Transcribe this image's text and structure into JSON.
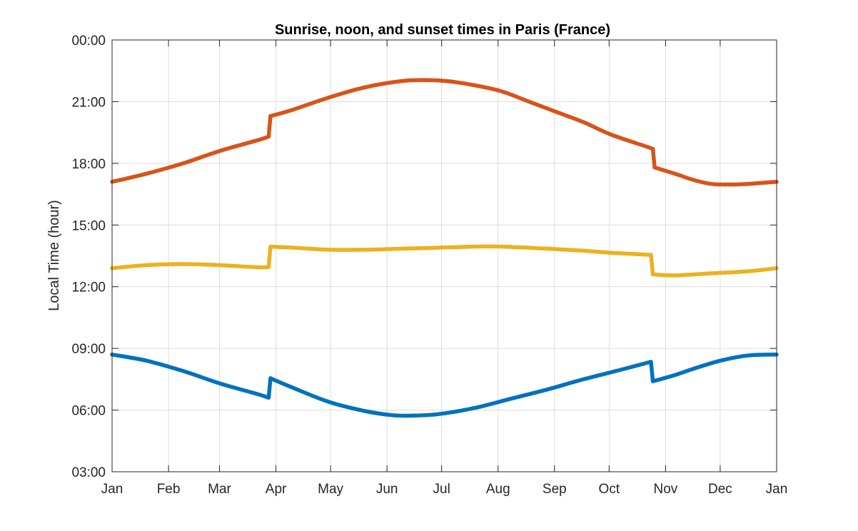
{
  "chart_data": {
    "type": "line",
    "title": "Sunrise, noon, and sunset times in Paris (France)",
    "xlabel": "",
    "ylabel": "Local Time (hour)",
    "x_unit": "day of year",
    "xlim": [
      1,
      366
    ],
    "ylim": [
      3,
      24
    ],
    "grid": true,
    "x_ticks": [
      {
        "value": 1,
        "label": "Jan"
      },
      {
        "value": 32,
        "label": "Feb"
      },
      {
        "value": 60,
        "label": "Mar"
      },
      {
        "value": 91,
        "label": "Apr"
      },
      {
        "value": 121,
        "label": "May"
      },
      {
        "value": 152,
        "label": "Jun"
      },
      {
        "value": 182,
        "label": "Jul"
      },
      {
        "value": 213,
        "label": "Aug"
      },
      {
        "value": 244,
        "label": "Sep"
      },
      {
        "value": 274,
        "label": "Oct"
      },
      {
        "value": 305,
        "label": "Nov"
      },
      {
        "value": 335,
        "label": "Dec"
      },
      {
        "value": 366,
        "label": "Jan"
      }
    ],
    "y_ticks": [
      {
        "value": 3,
        "label": "03:00"
      },
      {
        "value": 6,
        "label": "06:00"
      },
      {
        "value": 9,
        "label": "09:00"
      },
      {
        "value": 12,
        "label": "12:00"
      },
      {
        "value": 15,
        "label": "15:00"
      },
      {
        "value": 18,
        "label": "18:00"
      },
      {
        "value": 21,
        "label": "21:00"
      },
      {
        "value": 24,
        "label": "00:00"
      }
    ],
    "series": [
      {
        "color": "#D95319",
        "points": [
          [
            1,
            17.1
          ],
          [
            20,
            17.5
          ],
          [
            40,
            18.0
          ],
          [
            60,
            18.6
          ],
          [
            80,
            19.1
          ],
          [
            87,
            19.3
          ],
          [
            88,
            20.3
          ],
          [
            100,
            20.6
          ],
          [
            120,
            21.2
          ],
          [
            140,
            21.7
          ],
          [
            160,
            22.0
          ],
          [
            175,
            22.05
          ],
          [
            185,
            22.0
          ],
          [
            200,
            21.8
          ],
          [
            215,
            21.5
          ],
          [
            230,
            21.0
          ],
          [
            245,
            20.5
          ],
          [
            260,
            20.0
          ],
          [
            275,
            19.4
          ],
          [
            295,
            18.8
          ],
          [
            298,
            18.7
          ],
          [
            299,
            17.8
          ],
          [
            310,
            17.5
          ],
          [
            320,
            17.2
          ],
          [
            330,
            17.0
          ],
          [
            340,
            16.97
          ],
          [
            350,
            17.0
          ],
          [
            366,
            17.1
          ]
        ]
      },
      {
        "color": "#EDB120",
        "points": [
          [
            1,
            12.9
          ],
          [
            20,
            13.05
          ],
          [
            40,
            13.1
          ],
          [
            60,
            13.05
          ],
          [
            80,
            12.95
          ],
          [
            87,
            12.95
          ],
          [
            88,
            13.95
          ],
          [
            100,
            13.9
          ],
          [
            120,
            13.8
          ],
          [
            140,
            13.8
          ],
          [
            160,
            13.85
          ],
          [
            180,
            13.9
          ],
          [
            200,
            13.95
          ],
          [
            215,
            13.95
          ],
          [
            240,
            13.85
          ],
          [
            260,
            13.75
          ],
          [
            275,
            13.65
          ],
          [
            297,
            13.55
          ],
          [
            298,
            12.6
          ],
          [
            310,
            12.55
          ],
          [
            330,
            12.65
          ],
          [
            350,
            12.75
          ],
          [
            366,
            12.9
          ]
        ]
      },
      {
        "color": "#0072BD",
        "points": [
          [
            1,
            8.7
          ],
          [
            20,
            8.4
          ],
          [
            40,
            7.9
          ],
          [
            60,
            7.3
          ],
          [
            80,
            6.8
          ],
          [
            87,
            6.6
          ],
          [
            88,
            7.55
          ],
          [
            100,
            7.1
          ],
          [
            120,
            6.4
          ],
          [
            140,
            5.95
          ],
          [
            155,
            5.75
          ],
          [
            165,
            5.73
          ],
          [
            180,
            5.8
          ],
          [
            200,
            6.1
          ],
          [
            220,
            6.55
          ],
          [
            240,
            7.0
          ],
          [
            260,
            7.5
          ],
          [
            280,
            7.95
          ],
          [
            297,
            8.35
          ],
          [
            298,
            7.4
          ],
          [
            310,
            7.7
          ],
          [
            320,
            8.0
          ],
          [
            335,
            8.4
          ],
          [
            350,
            8.65
          ],
          [
            366,
            8.7
          ]
        ]
      }
    ]
  }
}
